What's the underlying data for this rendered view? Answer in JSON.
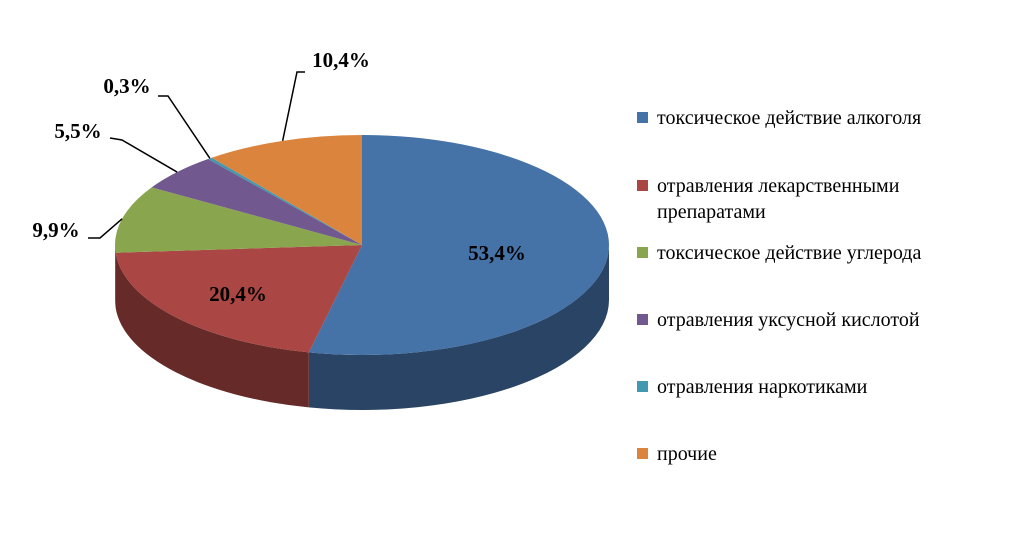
{
  "chart_data": {
    "type": "pie3d",
    "categories": [
      "токсическое действие алкоголя",
      "отравления лекарственными препаратами",
      "токсическое действие углерода",
      "отравления уксусной кислотой",
      "отравления наркотиками",
      "прочие"
    ],
    "values": [
      53.4,
      20.4,
      9.9,
      5.5,
      0.3,
      10.4
    ],
    "value_labels": [
      "53,4%",
      "20,4%",
      "9,9%",
      "5,5%",
      "0,3%",
      "10,4%"
    ],
    "colors": [
      "#4572a7",
      "#aa4643",
      "#89a54e",
      "#71588f",
      "#4198af",
      "#db843d"
    ],
    "legend": "right"
  }
}
